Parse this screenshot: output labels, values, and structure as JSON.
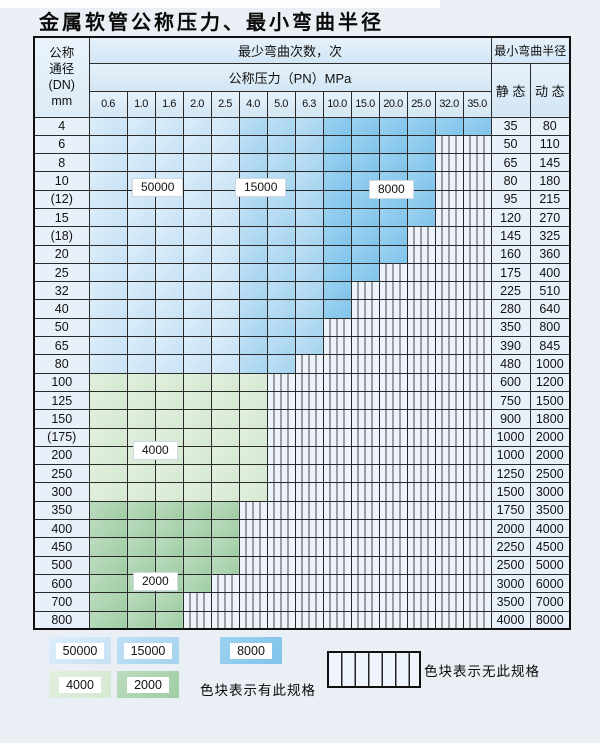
{
  "title": "金属软管公称压力、最小弯曲半径",
  "header": {
    "dn_lines": [
      "公称",
      "通径",
      "(DN)",
      "mm"
    ],
    "cycles": "最少弯曲次数，次",
    "pressure": "公称压力（PN）MPa",
    "radius": "最小弯曲半径",
    "static": "静 态",
    "dynamic": "动 态",
    "pressures": [
      "0.6",
      "1.0",
      "1.6",
      "2.0",
      "2.5",
      "4.0",
      "5.0",
      "6.3",
      "10.0",
      "15.0",
      "20.0",
      "25.0",
      "32.0",
      "35.0"
    ]
  },
  "rows": [
    {
      "dn": "4",
      "colored": 14,
      "palette": "blue",
      "static": "35",
      "dynamic": "80"
    },
    {
      "dn": "6",
      "colored": 12,
      "palette": "blue",
      "static": "50",
      "dynamic": "110"
    },
    {
      "dn": "8",
      "colored": 12,
      "palette": "blue",
      "static": "65",
      "dynamic": "145"
    },
    {
      "dn": "10",
      "colored": 12,
      "palette": "blue",
      "static": "80",
      "dynamic": "180"
    },
    {
      "dn": "(12)",
      "colored": 12,
      "palette": "blue",
      "static": "95",
      "dynamic": "215"
    },
    {
      "dn": "15",
      "colored": 12,
      "palette": "blue",
      "static": "120",
      "dynamic": "270"
    },
    {
      "dn": "(18)",
      "colored": 11,
      "palette": "blue",
      "static": "145",
      "dynamic": "325"
    },
    {
      "dn": "20",
      "colored": 11,
      "palette": "blue",
      "static": "160",
      "dynamic": "360"
    },
    {
      "dn": "25",
      "colored": 10,
      "palette": "blue",
      "static": "175",
      "dynamic": "400"
    },
    {
      "dn": "32",
      "colored": 9,
      "palette": "blue",
      "static": "225",
      "dynamic": "510"
    },
    {
      "dn": "40",
      "colored": 9,
      "palette": "blue",
      "static": "280",
      "dynamic": "640"
    },
    {
      "dn": "50",
      "colored": 8,
      "palette": "blue",
      "static": "350",
      "dynamic": "800"
    },
    {
      "dn": "65",
      "colored": 8,
      "palette": "blue",
      "static": "390",
      "dynamic": "845"
    },
    {
      "dn": "80",
      "colored": 7,
      "palette": "blue",
      "static": "480",
      "dynamic": "1000"
    },
    {
      "dn": "100",
      "colored": 6,
      "palette": "c4000",
      "static": "600",
      "dynamic": "1200"
    },
    {
      "dn": "125",
      "colored": 6,
      "palette": "c4000",
      "static": "750",
      "dynamic": "1500"
    },
    {
      "dn": "150",
      "colored": 6,
      "palette": "c4000",
      "static": "900",
      "dynamic": "1800"
    },
    {
      "dn": "(175)",
      "colored": 6,
      "palette": "c4000",
      "static": "1000",
      "dynamic": "2000"
    },
    {
      "dn": "200",
      "colored": 6,
      "palette": "c4000",
      "static": "1000",
      "dynamic": "2000"
    },
    {
      "dn": "250",
      "colored": 6,
      "palette": "c4000",
      "static": "1250",
      "dynamic": "2500"
    },
    {
      "dn": "300",
      "colored": 6,
      "palette": "c4000",
      "static": "1500",
      "dynamic": "3000"
    },
    {
      "dn": "350",
      "colored": 5,
      "palette": "c2000",
      "static": "1750",
      "dynamic": "3500"
    },
    {
      "dn": "400",
      "colored": 5,
      "palette": "c2000",
      "static": "2000",
      "dynamic": "4000"
    },
    {
      "dn": "450",
      "colored": 5,
      "palette": "c2000",
      "static": "2250",
      "dynamic": "4500"
    },
    {
      "dn": "500",
      "colored": 5,
      "palette": "c2000",
      "static": "2500",
      "dynamic": "5000"
    },
    {
      "dn": "600",
      "colored": 4,
      "palette": "c2000",
      "static": "3000",
      "dynamic": "6000"
    },
    {
      "dn": "700",
      "colored": 3,
      "palette": "c2000",
      "static": "3500",
      "dynamic": "7000"
    },
    {
      "dn": "800",
      "colored": 3,
      "palette": "c2000",
      "static": "4000",
      "dynamic": "8000"
    }
  ],
  "overlays": [
    {
      "label": "50000"
    },
    {
      "label": "15000"
    },
    {
      "label": "8000"
    },
    {
      "label": "4000"
    },
    {
      "label": "2000"
    }
  ],
  "legend": {
    "swatches": [
      {
        "label": "50000",
        "palette": "c50000"
      },
      {
        "label": "15000",
        "palette": "c15000"
      },
      {
        "label": "8000",
        "palette": "c8000"
      },
      {
        "label": "4000",
        "palette": "c4000"
      },
      {
        "label": "2000",
        "palette": "c2000"
      }
    ],
    "has_spec_note": "色块表示有此规格",
    "no_spec_note": "色块表示无此规格"
  },
  "palette": {
    "c50000": "#c7e1f4",
    "c50000_hi": "#ddeefa",
    "c15000": "#a4d3ef",
    "c15000_hi": "#c0e0f5",
    "c8000": "#7fc3ea",
    "c8000_hi": "#9cd2f1",
    "c4000": "#d4e8d1",
    "c4000_hi": "#e2f0de",
    "c2000": "#9fcda4",
    "c2000_hi": "#bddcbf",
    "no_spec_bg": "#edf3fb",
    "label_cell_bg": "#e8f1f9",
    "header_bg": "#d9e9f6",
    "grid": "#2a2a2a",
    "page_bg": "#e9eff4"
  }
}
